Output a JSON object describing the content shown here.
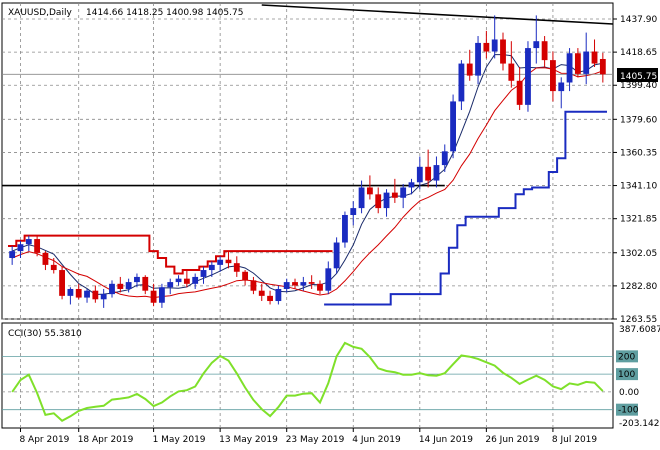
{
  "header": {
    "symbol": "XAUUSD,Daily",
    "ohlc": "1414.66 1418.25 1400.98 1405.75"
  },
  "price_badge": "1405.75",
  "chart_data": [
    {
      "type": "candlestick",
      "title": "XAUUSD,Daily",
      "y_ticks": [
        "1437.90",
        "1418.65",
        "1399.40",
        "1379.60",
        "1360.35",
        "1341.10",
        "1321.85",
        "1302.05",
        "1282.80",
        "1263.55"
      ],
      "x_ticks": [
        "8 Apr 2019",
        "18 Apr 2019",
        "1 May 2019",
        "13 May 2019",
        "23 May 2019",
        "4 Jun 2019",
        "14 Jun 2019",
        "26 Jun 2019",
        "8 Jul 2019"
      ],
      "ylim": [
        1263.55,
        1447.2
      ],
      "candles": [
        [
          1299,
          1306,
          1295,
          1303
        ],
        [
          1303,
          1309,
          1299,
          1307
        ],
        [
          1307,
          1312,
          1303,
          1310
        ],
        [
          1310,
          1312,
          1300,
          1302
        ],
        [
          1302,
          1303,
          1292,
          1295
        ],
        [
          1295,
          1299,
          1290,
          1292
        ],
        [
          1292,
          1294,
          1275,
          1277
        ],
        [
          1277,
          1282,
          1272,
          1281
        ],
        [
          1281,
          1284,
          1275,
          1276
        ],
        [
          1276,
          1281,
          1273,
          1280
        ],
        [
          1280,
          1283,
          1273,
          1275
        ],
        [
          1275,
          1281,
          1270,
          1278
        ],
        [
          1278,
          1286,
          1276,
          1284
        ],
        [
          1284,
          1288,
          1279,
          1281
        ],
        [
          1281,
          1287,
          1279,
          1285
        ],
        [
          1285,
          1290,
          1282,
          1288
        ],
        [
          1288,
          1289,
          1278,
          1280
        ],
        [
          1280,
          1284,
          1271,
          1273
        ],
        [
          1273,
          1284,
          1270,
          1282
        ],
        [
          1282,
          1287,
          1278,
          1285
        ],
        [
          1285,
          1289,
          1283,
          1287
        ],
        [
          1287,
          1292,
          1282,
          1284
        ],
        [
          1284,
          1290,
          1281,
          1288
        ],
        [
          1288,
          1294,
          1284,
          1292
        ],
        [
          1292,
          1297,
          1288,
          1295
        ],
        [
          1295,
          1300,
          1291,
          1298
        ],
        [
          1298,
          1303,
          1293,
          1296
        ],
        [
          1296,
          1300,
          1288,
          1291
        ],
        [
          1291,
          1292,
          1283,
          1286
        ],
        [
          1286,
          1288,
          1278,
          1280
        ],
        [
          1280,
          1284,
          1274,
          1277
        ],
        [
          1277,
          1280,
          1272,
          1274
        ],
        [
          1274,
          1283,
          1272,
          1281
        ],
        [
          1281,
          1287,
          1279,
          1285
        ],
        [
          1285,
          1287,
          1281,
          1283
        ],
        [
          1283,
          1288,
          1280,
          1285
        ],
        [
          1285,
          1289,
          1281,
          1284
        ],
        [
          1284,
          1286,
          1278,
          1280
        ],
        [
          1280,
          1297,
          1278,
          1293
        ],
        [
          1293,
          1311,
          1290,
          1308
        ],
        [
          1308,
          1326,
          1305,
          1324
        ],
        [
          1324,
          1332,
          1318,
          1328
        ],
        [
          1328,
          1344,
          1325,
          1340
        ],
        [
          1340,
          1347,
          1333,
          1336
        ],
        [
          1336,
          1340,
          1325,
          1328
        ],
        [
          1328,
          1339,
          1323,
          1337
        ],
        [
          1337,
          1345,
          1331,
          1334
        ],
        [
          1334,
          1342,
          1328,
          1340
        ],
        [
          1340,
          1345,
          1336,
          1343
        ],
        [
          1343,
          1358,
          1339,
          1352
        ],
        [
          1352,
          1362,
          1340,
          1344
        ],
        [
          1344,
          1358,
          1340,
          1353
        ],
        [
          1353,
          1365,
          1349,
          1361
        ],
        [
          1361,
          1394,
          1357,
          1390
        ],
        [
          1390,
          1414,
          1385,
          1412
        ],
        [
          1412,
          1420,
          1402,
          1405
        ],
        [
          1405,
          1428,
          1400,
          1424
        ],
        [
          1424,
          1431,
          1415,
          1419
        ],
        [
          1419,
          1440,
          1415,
          1426
        ],
        [
          1426,
          1430,
          1408,
          1412
        ],
        [
          1412,
          1425,
          1398,
          1402
        ],
        [
          1402,
          1410,
          1385,
          1388
        ],
        [
          1388,
          1425,
          1384,
          1421
        ],
        [
          1421,
          1440,
          1412,
          1425
        ],
        [
          1425,
          1428,
          1410,
          1414
        ],
        [
          1414,
          1419,
          1390,
          1396
        ],
        [
          1396,
          1404,
          1386,
          1401
        ],
        [
          1401,
          1421,
          1396,
          1418
        ],
        [
          1418,
          1421,
          1404,
          1406
        ],
        [
          1406,
          1430,
          1400,
          1419
        ],
        [
          1419,
          1426,
          1410,
          1412
        ],
        [
          1414.66,
          1418.25,
          1400.98,
          1405.75
        ]
      ],
      "bullish_color": "#1a2bc0",
      "bearish_color": "#d40000",
      "horizontal_levels": [
        1437.9,
        1341.1
      ]
    },
    {
      "type": "line",
      "title": "CCI(30) 55.3810",
      "y_labels": [
        "387.6087",
        "200",
        "100",
        "0.00",
        "-100",
        "-203.1423"
      ],
      "ylim": [
        -203.1423,
        387.6087
      ],
      "line_color": "#7fe02a"
    }
  ]
}
